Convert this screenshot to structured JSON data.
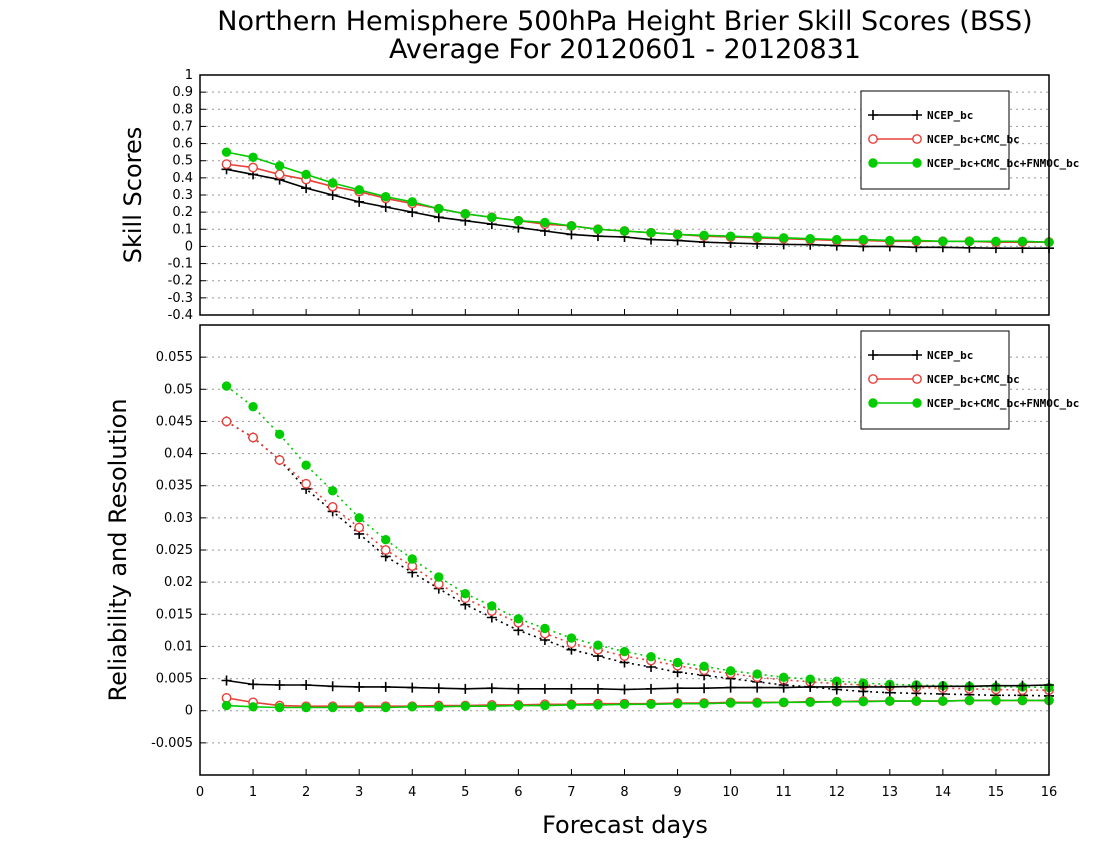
{
  "title_line1": "Northern Hemisphere 500hPa Height Brier Skill Scores (BSS)",
  "title_line2": "Average For 20120601 - 20120831",
  "xlabel": "Forecast days",
  "chart_data": [
    {
      "type": "line",
      "ylabel": "Skill Scores",
      "xlim": [
        0,
        16
      ],
      "ylim": [
        -0.4,
        1
      ],
      "grid": true,
      "legend_position": "top-right",
      "x_ticks": [
        "0",
        "1",
        "2",
        "3",
        "4",
        "5",
        "6",
        "7",
        "8",
        "9",
        "10",
        "11",
        "12",
        "13",
        "14",
        "15",
        "16"
      ],
      "y_ticks": [
        "-0.4",
        "-0.3",
        "-0.2",
        "-0.1",
        "0",
        "0.1",
        "0.2",
        "0.3",
        "0.4",
        "0.5",
        "0.6",
        "0.7",
        "0.8",
        "0.9",
        "1"
      ],
      "x": [
        0.5,
        1,
        1.5,
        2,
        2.5,
        3,
        3.5,
        4,
        4.5,
        5,
        5.5,
        6,
        6.5,
        7,
        7.5,
        8,
        8.5,
        9,
        9.5,
        10,
        10.5,
        11,
        11.5,
        12,
        12.5,
        13,
        13.5,
        14,
        14.5,
        15,
        15.5,
        16
      ],
      "series": [
        {
          "name": "NCEP_bc",
          "color": "#000000",
          "marker": "plus",
          "dash": "solid",
          "values": [
            0.45,
            0.42,
            0.39,
            0.34,
            0.3,
            0.26,
            0.23,
            0.2,
            0.17,
            0.15,
            0.13,
            0.11,
            0.09,
            0.07,
            0.06,
            0.055,
            0.04,
            0.035,
            0.025,
            0.02,
            0.015,
            0.012,
            0.01,
            0.005,
            0.0,
            0.0,
            -0.005,
            -0.005,
            -0.008,
            -0.01,
            -0.01,
            -0.01
          ]
        },
        {
          "name": "NCEP_bc+CMC_bc",
          "color": "#e8403a",
          "marker": "open-circle",
          "dash": "solid",
          "values": [
            0.48,
            0.46,
            0.42,
            0.39,
            0.35,
            0.32,
            0.28,
            0.25,
            0.22,
            0.19,
            0.17,
            0.15,
            0.13,
            0.12,
            0.1,
            0.09,
            0.08,
            0.07,
            0.06,
            0.055,
            0.05,
            0.045,
            0.04,
            0.035,
            0.035,
            0.03,
            0.03,
            0.03,
            0.03,
            0.025,
            0.025,
            0.025
          ]
        },
        {
          "name": "NCEP_bc+CMC_bc+FNMOC_bc",
          "color": "#00cc00",
          "marker": "filled-circle",
          "dash": "solid",
          "values": [
            0.55,
            0.52,
            0.47,
            0.42,
            0.37,
            0.33,
            0.29,
            0.26,
            0.22,
            0.19,
            0.17,
            0.15,
            0.14,
            0.12,
            0.1,
            0.09,
            0.08,
            0.07,
            0.065,
            0.06,
            0.055,
            0.05,
            0.045,
            0.04,
            0.04,
            0.035,
            0.035,
            0.03,
            0.03,
            0.03,
            0.03,
            0.025
          ]
        }
      ]
    },
    {
      "type": "line",
      "ylabel": "Reliability and Resolution",
      "xlim": [
        0,
        16
      ],
      "ylim": [
        -0.01,
        0.06
      ],
      "grid": true,
      "legend_position": "top-right",
      "x_ticks": [
        "0",
        "1",
        "2",
        "3",
        "4",
        "5",
        "6",
        "7",
        "8",
        "9",
        "10",
        "11",
        "12",
        "13",
        "14",
        "15",
        "16"
      ],
      "y_ticks": [
        "-0.005",
        "0",
        "0.005",
        "0.01",
        "0.015",
        "0.02",
        "0.025",
        "0.03",
        "0.035",
        "0.04",
        "0.045",
        "0.05",
        "0.055"
      ],
      "x": [
        0.5,
        1,
        1.5,
        2,
        2.5,
        3,
        3.5,
        4,
        4.5,
        5,
        5.5,
        6,
        6.5,
        7,
        7.5,
        8,
        8.5,
        9,
        9.5,
        10,
        10.5,
        11,
        11.5,
        12,
        12.5,
        13,
        13.5,
        14,
        14.5,
        15,
        15.5,
        16
      ],
      "series": [
        {
          "name": "NCEP_bc",
          "color": "#000000",
          "marker": "plus",
          "dash": "dotted",
          "role": "resolution",
          "values": [
            0.045,
            0.0425,
            0.039,
            0.0345,
            0.031,
            0.0275,
            0.024,
            0.0215,
            0.019,
            0.0165,
            0.0145,
            0.0125,
            0.011,
            0.0095,
            0.0085,
            0.0075,
            0.0068,
            0.006,
            0.0055,
            0.005,
            0.0045,
            0.004,
            0.0037,
            0.0033,
            0.003,
            0.0028,
            0.0027,
            0.0026,
            0.0025,
            0.0024,
            0.0024,
            0.0023
          ]
        },
        {
          "name": "NCEP_bc+CMC_bc",
          "color": "#e8403a",
          "marker": "open-circle",
          "dash": "dotted",
          "role": "resolution",
          "values": [
            0.045,
            0.0425,
            0.039,
            0.0353,
            0.0317,
            0.0285,
            0.025,
            0.0225,
            0.0197,
            0.0175,
            0.0155,
            0.0137,
            0.012,
            0.0105,
            0.0095,
            0.0085,
            0.0078,
            0.007,
            0.0063,
            0.0058,
            0.0052,
            0.0048,
            0.0045,
            0.0042,
            0.004,
            0.0038,
            0.0036,
            0.0035,
            0.0034,
            0.0033,
            0.0032,
            0.0032
          ]
        },
        {
          "name": "NCEP_bc+CMC_bc+FNMOC_bc",
          "color": "#00cc00",
          "marker": "filled-circle",
          "dash": "dotted",
          "role": "resolution",
          "values": [
            0.0505,
            0.0473,
            0.043,
            0.0382,
            0.0342,
            0.03,
            0.0266,
            0.0236,
            0.0208,
            0.0182,
            0.0163,
            0.0143,
            0.0128,
            0.0113,
            0.0102,
            0.0092,
            0.0084,
            0.0075,
            0.0069,
            0.0062,
            0.0057,
            0.0052,
            0.0049,
            0.0046,
            0.0043,
            0.0041,
            0.004,
            0.0039,
            0.0038,
            0.0037,
            0.0037,
            0.0036
          ]
        },
        {
          "name": "NCEP_bc",
          "color": "#000000",
          "marker": "plus",
          "dash": "solid",
          "role": "reliability",
          "values": [
            0.0047,
            0.0041,
            0.004,
            0.004,
            0.0038,
            0.0037,
            0.0037,
            0.0036,
            0.0035,
            0.0034,
            0.0035,
            0.0034,
            0.0034,
            0.0034,
            0.0034,
            0.0033,
            0.0034,
            0.0035,
            0.0035,
            0.0036,
            0.0036,
            0.0036,
            0.0037,
            0.0037,
            0.0037,
            0.0037,
            0.0038,
            0.0038,
            0.0038,
            0.0039,
            0.0039,
            0.004
          ]
        },
        {
          "name": "NCEP_bc+CMC_bc",
          "color": "#e8403a",
          "marker": "open-circle",
          "dash": "solid",
          "role": "reliability",
          "values": [
            0.002,
            0.0013,
            0.0008,
            0.0007,
            0.0007,
            0.0007,
            0.0007,
            0.0007,
            0.0008,
            0.0008,
            0.0009,
            0.0009,
            0.001,
            0.001,
            0.0011,
            0.0011,
            0.0011,
            0.0012,
            0.0012,
            0.0013,
            0.0013,
            0.0013,
            0.0014,
            0.0014,
            0.0015,
            0.0015,
            0.0015,
            0.0015,
            0.0016,
            0.0016,
            0.0016,
            0.0016
          ]
        },
        {
          "name": "NCEP_bc+CMC_bc+FNMOC_bc",
          "color": "#00cc00",
          "marker": "filled-circle",
          "dash": "solid",
          "role": "reliability",
          "values": [
            0.0008,
            0.0006,
            0.0005,
            0.0005,
            0.0005,
            0.0005,
            0.0005,
            0.0006,
            0.0006,
            0.0007,
            0.0007,
            0.0008,
            0.0008,
            0.0009,
            0.0009,
            0.001,
            0.001,
            0.0011,
            0.0011,
            0.0012,
            0.0012,
            0.0013,
            0.0013,
            0.0014,
            0.0014,
            0.0015,
            0.0015,
            0.0015,
            0.0016,
            0.0016,
            0.0016,
            0.0016
          ]
        }
      ]
    }
  ]
}
